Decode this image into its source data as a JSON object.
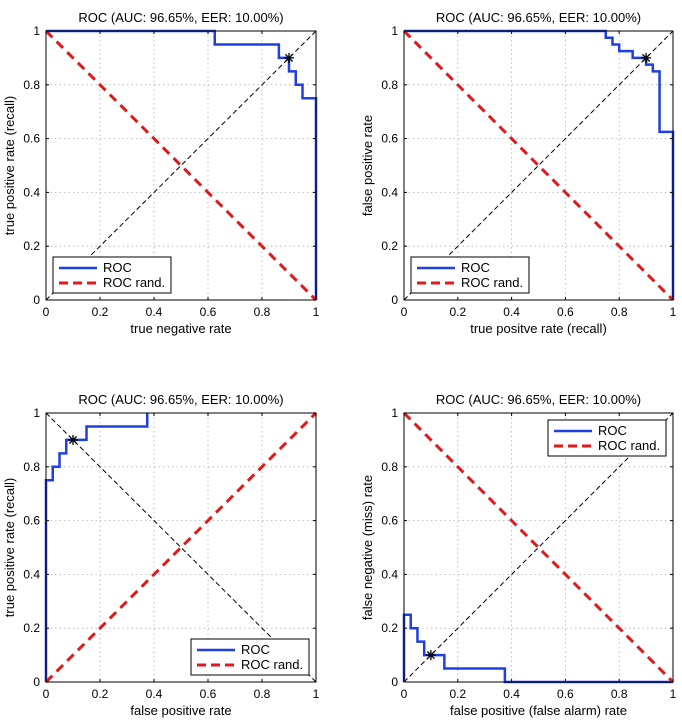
{
  "colors": {
    "roc": "#1f3fe0",
    "random": "#e01a1a",
    "eer_line": "#000000",
    "grid": "#b0b0b0"
  },
  "legend_labels": {
    "roc": "ROC",
    "random": "ROC rand."
  },
  "chart_data": [
    {
      "type": "line",
      "title": "ROC (AUC: 96.65%, EER: 10.00%)",
      "xlabel": "true negative rate",
      "ylabel": "true positive rate (recall)",
      "xlim": [
        0,
        1
      ],
      "ylim": [
        0,
        1
      ],
      "xticks": [
        "0",
        "0.2",
        "0.4",
        "0.6",
        "0.8",
        "1"
      ],
      "yticks": [
        "0",
        "0.2",
        "0.4",
        "0.6",
        "0.8",
        "1"
      ],
      "grid": true,
      "legend_position": "bottom-left",
      "series": [
        {
          "name": "ROC",
          "x": [
            0,
            0.625,
            0.625,
            0.8625,
            0.8625,
            0.9,
            0.9,
            0.925,
            0.925,
            0.95,
            0.95,
            0.975,
            0.975,
            1.0,
            1.0
          ],
          "y": [
            1,
            1,
            0.95,
            0.95,
            0.9,
            0.9,
            0.85,
            0.85,
            0.8,
            0.8,
            0.75,
            0.75,
            0.75,
            0.75,
            0
          ]
        },
        {
          "name": "ROC rand.",
          "x": [
            0,
            1
          ],
          "y": [
            1,
            0
          ]
        }
      ],
      "eer_line": {
        "x": [
          0,
          1
        ],
        "y": [
          0,
          1
        ]
      },
      "eer_point": {
        "x": 0.9,
        "y": 0.9
      }
    },
    {
      "type": "line",
      "title": "ROC (AUC: 96.65%, EER: 10.00%)",
      "xlabel": "true positve rate (recall)",
      "ylabel": "false positive rate",
      "xlim": [
        0,
        1
      ],
      "ylim": [
        0,
        1
      ],
      "xticks": [
        "0",
        "0.2",
        "0.4",
        "0.6",
        "0.8",
        "1"
      ],
      "yticks": [
        "0",
        "0.2",
        "0.4",
        "0.6",
        "0.8",
        "1"
      ],
      "grid": true,
      "legend_position": "bottom-left",
      "series": [
        {
          "name": "ROC",
          "x": [
            0,
            0.75,
            0.75,
            0.775,
            0.775,
            0.8,
            0.8,
            0.85,
            0.85,
            0.9,
            0.9,
            0.925,
            0.925,
            0.95,
            0.95,
            1.0,
            1.0
          ],
          "y": [
            1,
            1,
            0.975,
            0.975,
            0.95,
            0.95,
            0.925,
            0.925,
            0.9,
            0.9,
            0.875,
            0.875,
            0.85,
            0.85,
            0.625,
            0.625,
            0
          ]
        },
        {
          "name": "ROC rand.",
          "x": [
            0,
            1
          ],
          "y": [
            1,
            0
          ]
        }
      ],
      "eer_line": {
        "x": [
          0,
          1
        ],
        "y": [
          0,
          1
        ]
      },
      "eer_point": {
        "x": 0.9,
        "y": 0.9
      }
    },
    {
      "type": "line",
      "title": "ROC (AUC: 96.65%, EER: 10.00%)",
      "xlabel": "false positive rate",
      "ylabel": "true positive rate (recall)",
      "xlim": [
        0,
        1
      ],
      "ylim": [
        0,
        1
      ],
      "xticks": [
        "0",
        "0.2",
        "0.4",
        "0.6",
        "0.8",
        "1"
      ],
      "yticks": [
        "0",
        "0.2",
        "0.4",
        "0.6",
        "0.8",
        "1"
      ],
      "grid": true,
      "legend_position": "bottom-right",
      "series": [
        {
          "name": "ROC",
          "x": [
            0,
            0,
            0.025,
            0.025,
            0.05,
            0.05,
            0.075,
            0.075,
            0.1,
            0.1,
            0.15,
            0.15,
            0.375,
            0.375
          ],
          "y": [
            0,
            0.75,
            0.75,
            0.8,
            0.8,
            0.85,
            0.85,
            0.9,
            0.9,
            0.9,
            0.9,
            0.95,
            0.95,
            1.0
          ]
        },
        {
          "name": "ROC rand.",
          "x": [
            0,
            1
          ],
          "y": [
            0,
            1
          ]
        }
      ],
      "eer_line": {
        "x": [
          0,
          1
        ],
        "y": [
          1,
          0
        ]
      },
      "eer_point": {
        "x": 0.1,
        "y": 0.9
      }
    },
    {
      "type": "line",
      "title": "ROC (AUC: 96.65%, EER: 10.00%)",
      "xlabel": "false positive (false alarm) rate",
      "ylabel": "false negative (miss) rate",
      "xlim": [
        0,
        1
      ],
      "ylim": [
        0,
        1
      ],
      "xticks": [
        "0",
        "0.2",
        "0.4",
        "0.6",
        "0.8",
        "1"
      ],
      "yticks": [
        "0",
        "0.2",
        "0.4",
        "0.6",
        "0.8",
        "1"
      ],
      "grid": true,
      "legend_position": "top-right",
      "series": [
        {
          "name": "ROC",
          "x": [
            0,
            0,
            0.025,
            0.025,
            0.05,
            0.05,
            0.075,
            0.075,
            0.1,
            0.1,
            0.15,
            0.15,
            0.375,
            0.375,
            1.0
          ],
          "y": [
            0,
            0.25,
            0.25,
            0.2,
            0.2,
            0.15,
            0.15,
            0.1,
            0.1,
            0.1,
            0.1,
            0.05,
            0.05,
            0,
            0
          ]
        },
        {
          "name": "ROC rand.",
          "x": [
            0,
            1
          ],
          "y": [
            1,
            0
          ]
        }
      ],
      "eer_line": {
        "x": [
          0,
          1
        ],
        "y": [
          0,
          1
        ]
      },
      "eer_point": {
        "x": 0.1,
        "y": 0.1
      }
    }
  ]
}
